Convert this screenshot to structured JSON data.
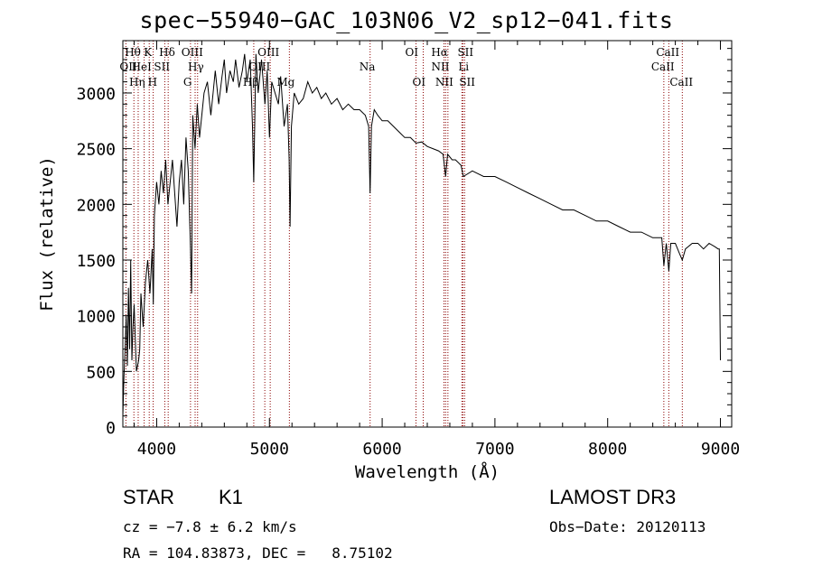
{
  "chart_data": {
    "type": "line",
    "title": "spec−55940−GAC_103N06_V2_sp12−041.fits",
    "xlabel": "Wavelength (Å)",
    "ylabel": "Flux (relative)",
    "xlim": [
      3700,
      9100
    ],
    "ylim": [
      0,
      3470
    ],
    "xticks": [
      4000,
      5000,
      6000,
      7000,
      8000,
      9000
    ],
    "yticks": [
      0,
      500,
      1000,
      1500,
      2000,
      2500,
      3000
    ],
    "series": [
      {
        "name": "spectrum",
        "x": [
          3700,
          3710,
          3720,
          3730,
          3740,
          3750,
          3760,
          3770,
          3780,
          3790,
          3800,
          3820,
          3840,
          3850,
          3860,
          3880,
          3900,
          3920,
          3940,
          3960,
          3970,
          3980,
          4000,
          4020,
          4040,
          4060,
          4080,
          4100,
          4120,
          4140,
          4160,
          4180,
          4200,
          4220,
          4240,
          4260,
          4280,
          4300,
          4310,
          4320,
          4340,
          4360,
          4380,
          4400,
          4420,
          4450,
          4480,
          4500,
          4520,
          4550,
          4580,
          4600,
          4620,
          4650,
          4680,
          4700,
          4730,
          4760,
          4780,
          4800,
          4830,
          4850,
          4861,
          4880,
          4900,
          4930,
          4960,
          4980,
          5000,
          5020,
          5050,
          5080,
          5100,
          5130,
          5160,
          5175,
          5183,
          5195,
          5220,
          5260,
          5300,
          5340,
          5380,
          5420,
          5460,
          5500,
          5550,
          5600,
          5650,
          5700,
          5750,
          5800,
          5850,
          5880,
          5893,
          5905,
          5930,
          5960,
          6000,
          6050,
          6100,
          6150,
          6200,
          6250,
          6300,
          6350,
          6400,
          6450,
          6500,
          6540,
          6563,
          6580,
          6620,
          6650,
          6700,
          6720,
          6800,
          6900,
          7000,
          7100,
          7200,
          7300,
          7400,
          7500,
          7600,
          7700,
          7800,
          7900,
          8000,
          8100,
          8200,
          8300,
          8400,
          8480,
          8498,
          8520,
          8542,
          8560,
          8600,
          8640,
          8662,
          8690,
          8750,
          8800,
          8850,
          8900,
          8950,
          8980,
          8990,
          9000
        ],
        "values": [
          100,
          450,
          700,
          1000,
          550,
          1250,
          700,
          1500,
          600,
          900,
          1100,
          500,
          600,
          700,
          1200,
          900,
          1300,
          1500,
          1200,
          1600,
          1100,
          1900,
          2200,
          2000,
          2300,
          2100,
          2400,
          2000,
          2200,
          2400,
          2100,
          1800,
          2200,
          2400,
          2000,
          2600,
          2300,
          1600,
          1200,
          2800,
          2500,
          2900,
          2600,
          2800,
          3000,
          3100,
          2800,
          3000,
          3200,
          2900,
          3150,
          3300,
          3000,
          3200,
          3100,
          3300,
          3050,
          3200,
          3350,
          3100,
          3300,
          2700,
          2200,
          3350,
          3000,
          3300,
          2900,
          3200,
          2600,
          3100,
          3000,
          2900,
          3150,
          2700,
          2900,
          2400,
          1800,
          2700,
          3000,
          2900,
          2950,
          3100,
          3000,
          3050,
          2950,
          3000,
          2900,
          2950,
          2850,
          2900,
          2850,
          2850,
          2800,
          2700,
          2100,
          2700,
          2850,
          2800,
          2750,
          2750,
          2700,
          2650,
          2600,
          2600,
          2550,
          2560,
          2520,
          2500,
          2480,
          2450,
          2250,
          2450,
          2400,
          2400,
          2350,
          2250,
          2300,
          2250,
          2250,
          2200,
          2150,
          2100,
          2050,
          2000,
          1950,
          1950,
          1900,
          1850,
          1850,
          1800,
          1750,
          1750,
          1700,
          1700,
          1450,
          1650,
          1400,
          1650,
          1650,
          1550,
          1500,
          1600,
          1650,
          1650,
          1600,
          1650,
          1620,
          1600,
          1600,
          600
        ]
      }
    ],
    "lines": [
      {
        "name": "OII",
        "wavelength": 3727,
        "row": 2,
        "dx": -7
      },
      {
        "name": "Hθ",
        "wavelength": 3798,
        "row": 1,
        "dx": -10
      },
      {
        "name": "Hη",
        "wavelength": 3836,
        "row": 3,
        "dx": -10
      },
      {
        "name": "HeI",
        "wavelength": 3889,
        "row": 2,
        "dx": -14
      },
      {
        "name": "K",
        "wavelength": 3934,
        "row": 1,
        "dx": -6
      },
      {
        "name": "H",
        "wavelength": 3969,
        "row": 3,
        "dx": -6
      },
      {
        "name": "SII",
        "wavelength": 4072,
        "row": 2,
        "dx": -12
      },
      {
        "name": "Hδ",
        "wavelength": 4102,
        "row": 1,
        "dx": -10
      },
      {
        "name": "G",
        "wavelength": 4300,
        "row": 3,
        "dx": -8
      },
      {
        "name": "Hγ",
        "wavelength": 4341,
        "row": 2,
        "dx": -8
      },
      {
        "name": "OIII",
        "wavelength": 4363,
        "row": 1,
        "dx": -18
      },
      {
        "name": "Hβ",
        "wavelength": 4861,
        "row": 3,
        "dx": -12
      },
      {
        "name": "OIII",
        "wavelength": 4959,
        "row": 2,
        "dx": -18
      },
      {
        "name": "OIII",
        "wavelength": 5007,
        "row": 1,
        "dx": -14
      },
      {
        "name": "Mg",
        "wavelength": 5177,
        "row": 3,
        "dx": -14
      },
      {
        "name": "Na",
        "wavelength": 5893,
        "row": 2,
        "dx": -12
      },
      {
        "name": "OI",
        "wavelength": 6300,
        "row": 1,
        "dx": -12
      },
      {
        "name": "OI",
        "wavelength": 6364,
        "row": 3,
        "dx": -12
      },
      {
        "name": "NII",
        "wavelength": 6548,
        "row": 2,
        "dx": -14
      },
      {
        "name": "Hα",
        "wavelength": 6563,
        "row": 1,
        "dx": -16
      },
      {
        "name": "NII",
        "wavelength": 6583,
        "row": 3,
        "dx": -14
      },
      {
        "name": "Li",
        "wavelength": 6707,
        "row": 2,
        "dx": -4
      },
      {
        "name": "SII",
        "wavelength": 6716,
        "row": 1,
        "dx": -6
      },
      {
        "name": "SII",
        "wavelength": 6731,
        "row": 3,
        "dx": -6
      },
      {
        "name": "CaII",
        "wavelength": 8498,
        "row": 2,
        "dx": -14
      },
      {
        "name": "CaII",
        "wavelength": 8542,
        "row": 1,
        "dx": -14
      },
      {
        "name": "CaII",
        "wavelength": 8662,
        "row": 3,
        "dx": -14
      }
    ]
  },
  "info": {
    "object_class": "STAR",
    "subclass": "K1",
    "survey": "LAMOST DR3",
    "cz": "cz = −7.8 ± 6.2 km/s",
    "obs_date": "Obs−Date: 20120113",
    "coords": "RA = 104.83873, DEC =   8.75102"
  },
  "colors": {
    "spectrum": "#000000",
    "line_marker": "#8b0000",
    "axes": "#000000"
  }
}
